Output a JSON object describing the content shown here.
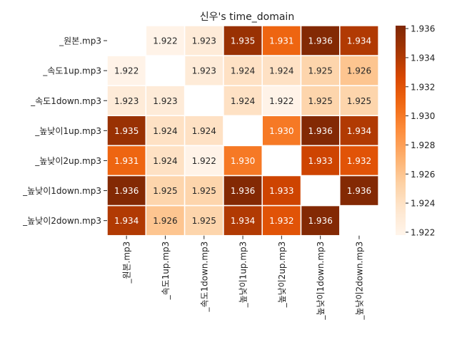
{
  "chart_data": {
    "type": "heatmap",
    "title": "신우's time_domain",
    "xlabel": "",
    "ylabel": "",
    "rows": [
      "_원본.mp3",
      "_속도1up.mp3",
      "_속도1down.mp3",
      "_높낮이1up.mp3",
      "_높낮이2up.mp3",
      "_높낮이1down.mp3",
      "_높낮이2down.mp3"
    ],
    "cols": [
      "_원본.mp3",
      "_속도1up.mp3",
      "_속도1down.mp3",
      "_높낮이1up.mp3",
      "_높낮이2up.mp3",
      "_높낮이1down.mp3",
      "_높낮이2down.mp3"
    ],
    "values": [
      [
        null,
        1.922,
        1.923,
        1.935,
        1.931,
        1.936,
        1.934
      ],
      [
        1.922,
        null,
        1.923,
        1.924,
        1.924,
        1.925,
        1.926
      ],
      [
        1.923,
        1.923,
        null,
        1.924,
        1.922,
        1.925,
        1.925
      ],
      [
        1.935,
        1.924,
        1.924,
        null,
        1.93,
        1.936,
        1.934
      ],
      [
        1.931,
        1.924,
        1.922,
        1.93,
        null,
        1.933,
        1.932
      ],
      [
        1.936,
        1.925,
        1.925,
        1.936,
        1.933,
        null,
        1.936
      ],
      [
        1.934,
        1.926,
        1.925,
        1.934,
        1.932,
        1.936,
        null
      ]
    ],
    "colormap": "Oranges",
    "vmin": 1.9218,
    "vmax": 1.9362,
    "colorbar_ticks": [
      "1.922",
      "1.924",
      "1.926",
      "1.928",
      "1.930",
      "1.932",
      "1.934",
      "1.936"
    ],
    "annotations": true,
    "grid": false
  }
}
